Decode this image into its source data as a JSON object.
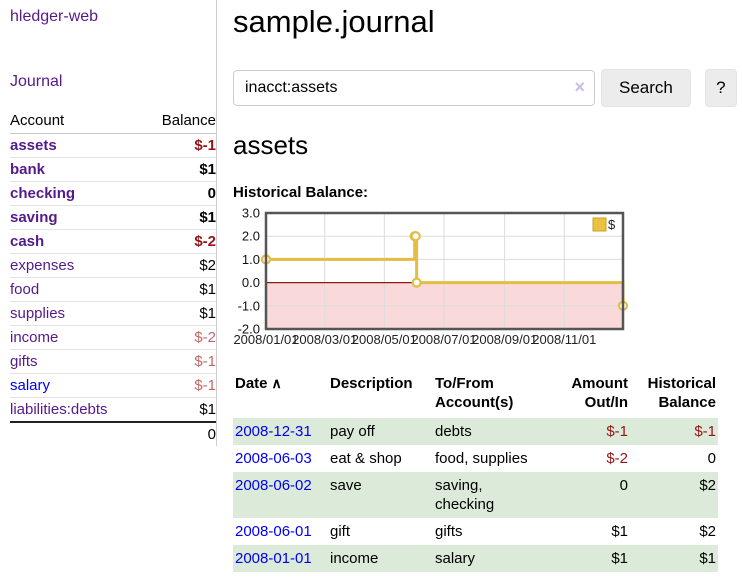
{
  "app": {
    "brand": "hledger-web",
    "nav_journal": "Journal"
  },
  "sidebar": {
    "headers": {
      "account": "Account",
      "balance": "Balance"
    },
    "accounts": [
      {
        "name": "assets",
        "indent": 1,
        "bold": true,
        "link_color": "purple",
        "balance": "$-1",
        "balance_style": "neg-strong"
      },
      {
        "name": "bank",
        "indent": 2,
        "bold": true,
        "link_color": "purple",
        "balance": "$1",
        "balance_style": "pos-strong"
      },
      {
        "name": "checking",
        "indent": 3,
        "bold": true,
        "link_color": "purple",
        "balance": "0",
        "balance_style": "pos-strong"
      },
      {
        "name": "saving",
        "indent": 3,
        "bold": true,
        "link_color": "purple",
        "balance": "$1",
        "balance_style": "pos-strong"
      },
      {
        "name": "cash",
        "indent": 2,
        "bold": true,
        "link_color": "purple",
        "balance": "$-2",
        "balance_style": "neg-strong"
      },
      {
        "name": "expenses",
        "indent": 1,
        "bold": false,
        "link_color": "purple",
        "balance": "$2",
        "balance_style": "pos"
      },
      {
        "name": "food",
        "indent": 2,
        "bold": false,
        "link_color": "purple",
        "balance": "$1",
        "balance_style": "pos"
      },
      {
        "name": "supplies",
        "indent": 2,
        "bold": false,
        "link_color": "purple",
        "balance": "$1",
        "balance_style": "pos"
      },
      {
        "name": "income",
        "indent": 1,
        "bold": false,
        "link_color": "purple",
        "balance": "$-2",
        "balance_style": "neg-dim"
      },
      {
        "name": "gifts",
        "indent": 2,
        "bold": false,
        "link_color": "purple",
        "balance": "$-1",
        "balance_style": "neg-dim"
      },
      {
        "name": "salary",
        "indent": 2,
        "bold": false,
        "link_color": "blue",
        "balance": "$-1",
        "balance_style": "neg-dim"
      },
      {
        "name": "liabilities:debts",
        "indent": 1,
        "bold": false,
        "link_color": "purple",
        "balance": "$1",
        "balance_style": "pos"
      }
    ],
    "total": "0"
  },
  "header": {
    "title": "sample.journal"
  },
  "search": {
    "value": "inacct:assets",
    "clear_icon": "×",
    "button_label": "Search",
    "help_label": "?"
  },
  "account_page": {
    "title": "assets",
    "chart_label": "Historical Balance:"
  },
  "chart_data": {
    "type": "line",
    "subtype": "step-after",
    "title": "Historical Balance",
    "series": [
      {
        "name": "$",
        "color": "#e4bd44",
        "points": [
          {
            "date": "2008-01-01",
            "value": 1
          },
          {
            "date": "2008-06-01",
            "value": 2
          },
          {
            "date": "2008-06-02",
            "value": 2
          },
          {
            "date": "2008-06-03",
            "value": 0
          },
          {
            "date": "2008-12-31",
            "value": -1
          }
        ]
      }
    ],
    "x_range": [
      "2008-01-01",
      "2008-12-31"
    ],
    "ylim": [
      -2,
      3
    ],
    "yticks": [
      3.0,
      2.0,
      1.0,
      0.0,
      -1.0,
      -2.0
    ],
    "xticks": [
      "2008/01/01",
      "2008/03/01",
      "2008/05/01",
      "2008/07/01",
      "2008/09/01",
      "2008/11/01"
    ],
    "grid": true,
    "legend_position": "top-right",
    "legend": [
      {
        "label": "$",
        "color": "#e9c23f"
      }
    ],
    "negative_region_fill": "#f9d9d9",
    "zero_line_color": "#8b1a1a",
    "border_color": "#555555"
  },
  "register": {
    "columns": {
      "date": "Date",
      "description": "Description",
      "accounts": "To/From Account(s)",
      "amount": "Amount Out/In",
      "balance": "Historical Balance"
    },
    "sort_indicator": "∧",
    "rows": [
      {
        "date": "2008-12-31",
        "description": "pay off",
        "accounts": "debts",
        "amount": "$-1",
        "amount_negative": true,
        "balance": "$-1",
        "balance_negative": true,
        "shaded": true
      },
      {
        "date": "2008-06-03",
        "description": "eat & shop",
        "accounts": "food, supplies",
        "amount": "$-2",
        "amount_negative": true,
        "balance": "0",
        "balance_negative": false,
        "shaded": false
      },
      {
        "date": "2008-06-02",
        "description": "save",
        "accounts": "saving, checking",
        "amount": "0",
        "amount_negative": false,
        "balance": "$2",
        "balance_negative": false,
        "shaded": true
      },
      {
        "date": "2008-06-01",
        "description": "gift",
        "accounts": "gifts",
        "amount": "$1",
        "amount_negative": false,
        "balance": "$2",
        "balance_negative": false,
        "shaded": false
      },
      {
        "date": "2008-01-01",
        "description": "income",
        "accounts": "salary",
        "amount": "$1",
        "amount_negative": false,
        "balance": "$1",
        "balance_negative": false,
        "shaded": true
      }
    ]
  }
}
